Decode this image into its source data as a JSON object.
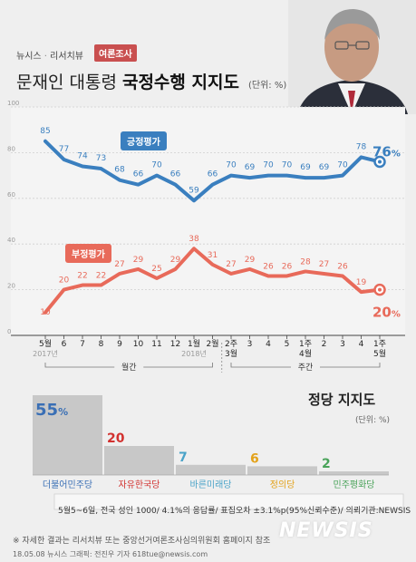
{
  "header": {
    "kicker_left": "뉴시스",
    "kicker_sep": "·",
    "kicker_right": "리서치뷰",
    "badge": "여론조사",
    "title_plain": "문재인 대통령",
    "title_bold": "국정수행 지지도",
    "title_unit": "(단위: %)"
  },
  "colors": {
    "positive": "#3a7fbf",
    "negative": "#e86a5a",
    "bar_default": "#c8c8c8"
  },
  "chart_data": [
    {
      "type": "line",
      "categories": [
        "5월",
        "6",
        "7",
        "8",
        "9",
        "10",
        "11",
        "12",
        "1월",
        "2월",
        "2주",
        "3",
        "4",
        "5",
        "1주",
        "2",
        "3",
        "4",
        "1주"
      ],
      "category_sublabels": [
        "2017년",
        "",
        "",
        "",
        "",
        "",
        "",
        "",
        "2018년",
        "",
        "3월",
        "",
        "",
        "",
        "4월",
        "",
        "",
        "",
        "5월"
      ],
      "groups": [
        {
          "label": "월간"
        },
        {
          "label": "주간"
        }
      ],
      "series": [
        {
          "name": "긍정평가",
          "values": [
            85,
            77,
            74,
            73,
            68,
            66,
            70,
            66,
            59,
            66,
            70,
            69,
            70,
            70,
            69,
            69,
            70,
            78,
            76
          ]
        },
        {
          "name": "부정평가",
          "values": [
            10,
            20,
            22,
            22,
            27,
            29,
            25,
            29,
            38,
            31,
            27,
            29,
            26,
            26,
            28,
            27,
            26,
            19,
            20
          ]
        }
      ],
      "value_labels": {
        "긍정평가": [
          "85",
          "77",
          "74",
          "73",
          "68",
          "66",
          "70",
          "66",
          "59",
          "66",
          "70",
          "69",
          "70",
          "70",
          "69",
          "69",
          "70",
          "78",
          "76%"
        ],
        "부정평가": [
          "10",
          "20",
          "22",
          "22",
          "27",
          "29",
          "25",
          "29",
          "38",
          "31",
          "27",
          "29",
          "26",
          "26",
          "28",
          "27",
          "26",
          "19",
          "20%"
        ]
      },
      "yticks": [
        "100",
        "80",
        "60",
        "40",
        "20",
        "0"
      ],
      "ylim": [
        0,
        100
      ],
      "grid": true
    },
    {
      "type": "bar",
      "title": "정당 지지도",
      "unit": "(단위: %)",
      "categories": [
        "더불어민주당",
        "자유한국당",
        "바른미래당",
        "정의당",
        "민주평화당"
      ],
      "values": [
        55,
        20,
        7,
        6,
        2
      ],
      "value_labels": [
        "55%",
        "20",
        "7",
        "6",
        "2"
      ],
      "colors": [
        "#3a6fb5",
        "#d2312f",
        "#4aa3c8",
        "#e3a21a",
        "#4aa35a"
      ]
    }
  ],
  "footer": {
    "source": "5월5~6일, 전국 성인 1000/ 4.1%의 응답률/ 표집오차 ±3.1%p(95%신뢰수준)/ 의뢰기관:NEWSIS",
    "note": "※ 자세한 결과는 리서치뷰 또는 중앙선거여론조사심의위원회 홈페이지 참조",
    "credit": "18.05.08 뉴시스 그래픽: 전진우 기자 618tue@newsis.com",
    "logo": "NEWSIS"
  }
}
